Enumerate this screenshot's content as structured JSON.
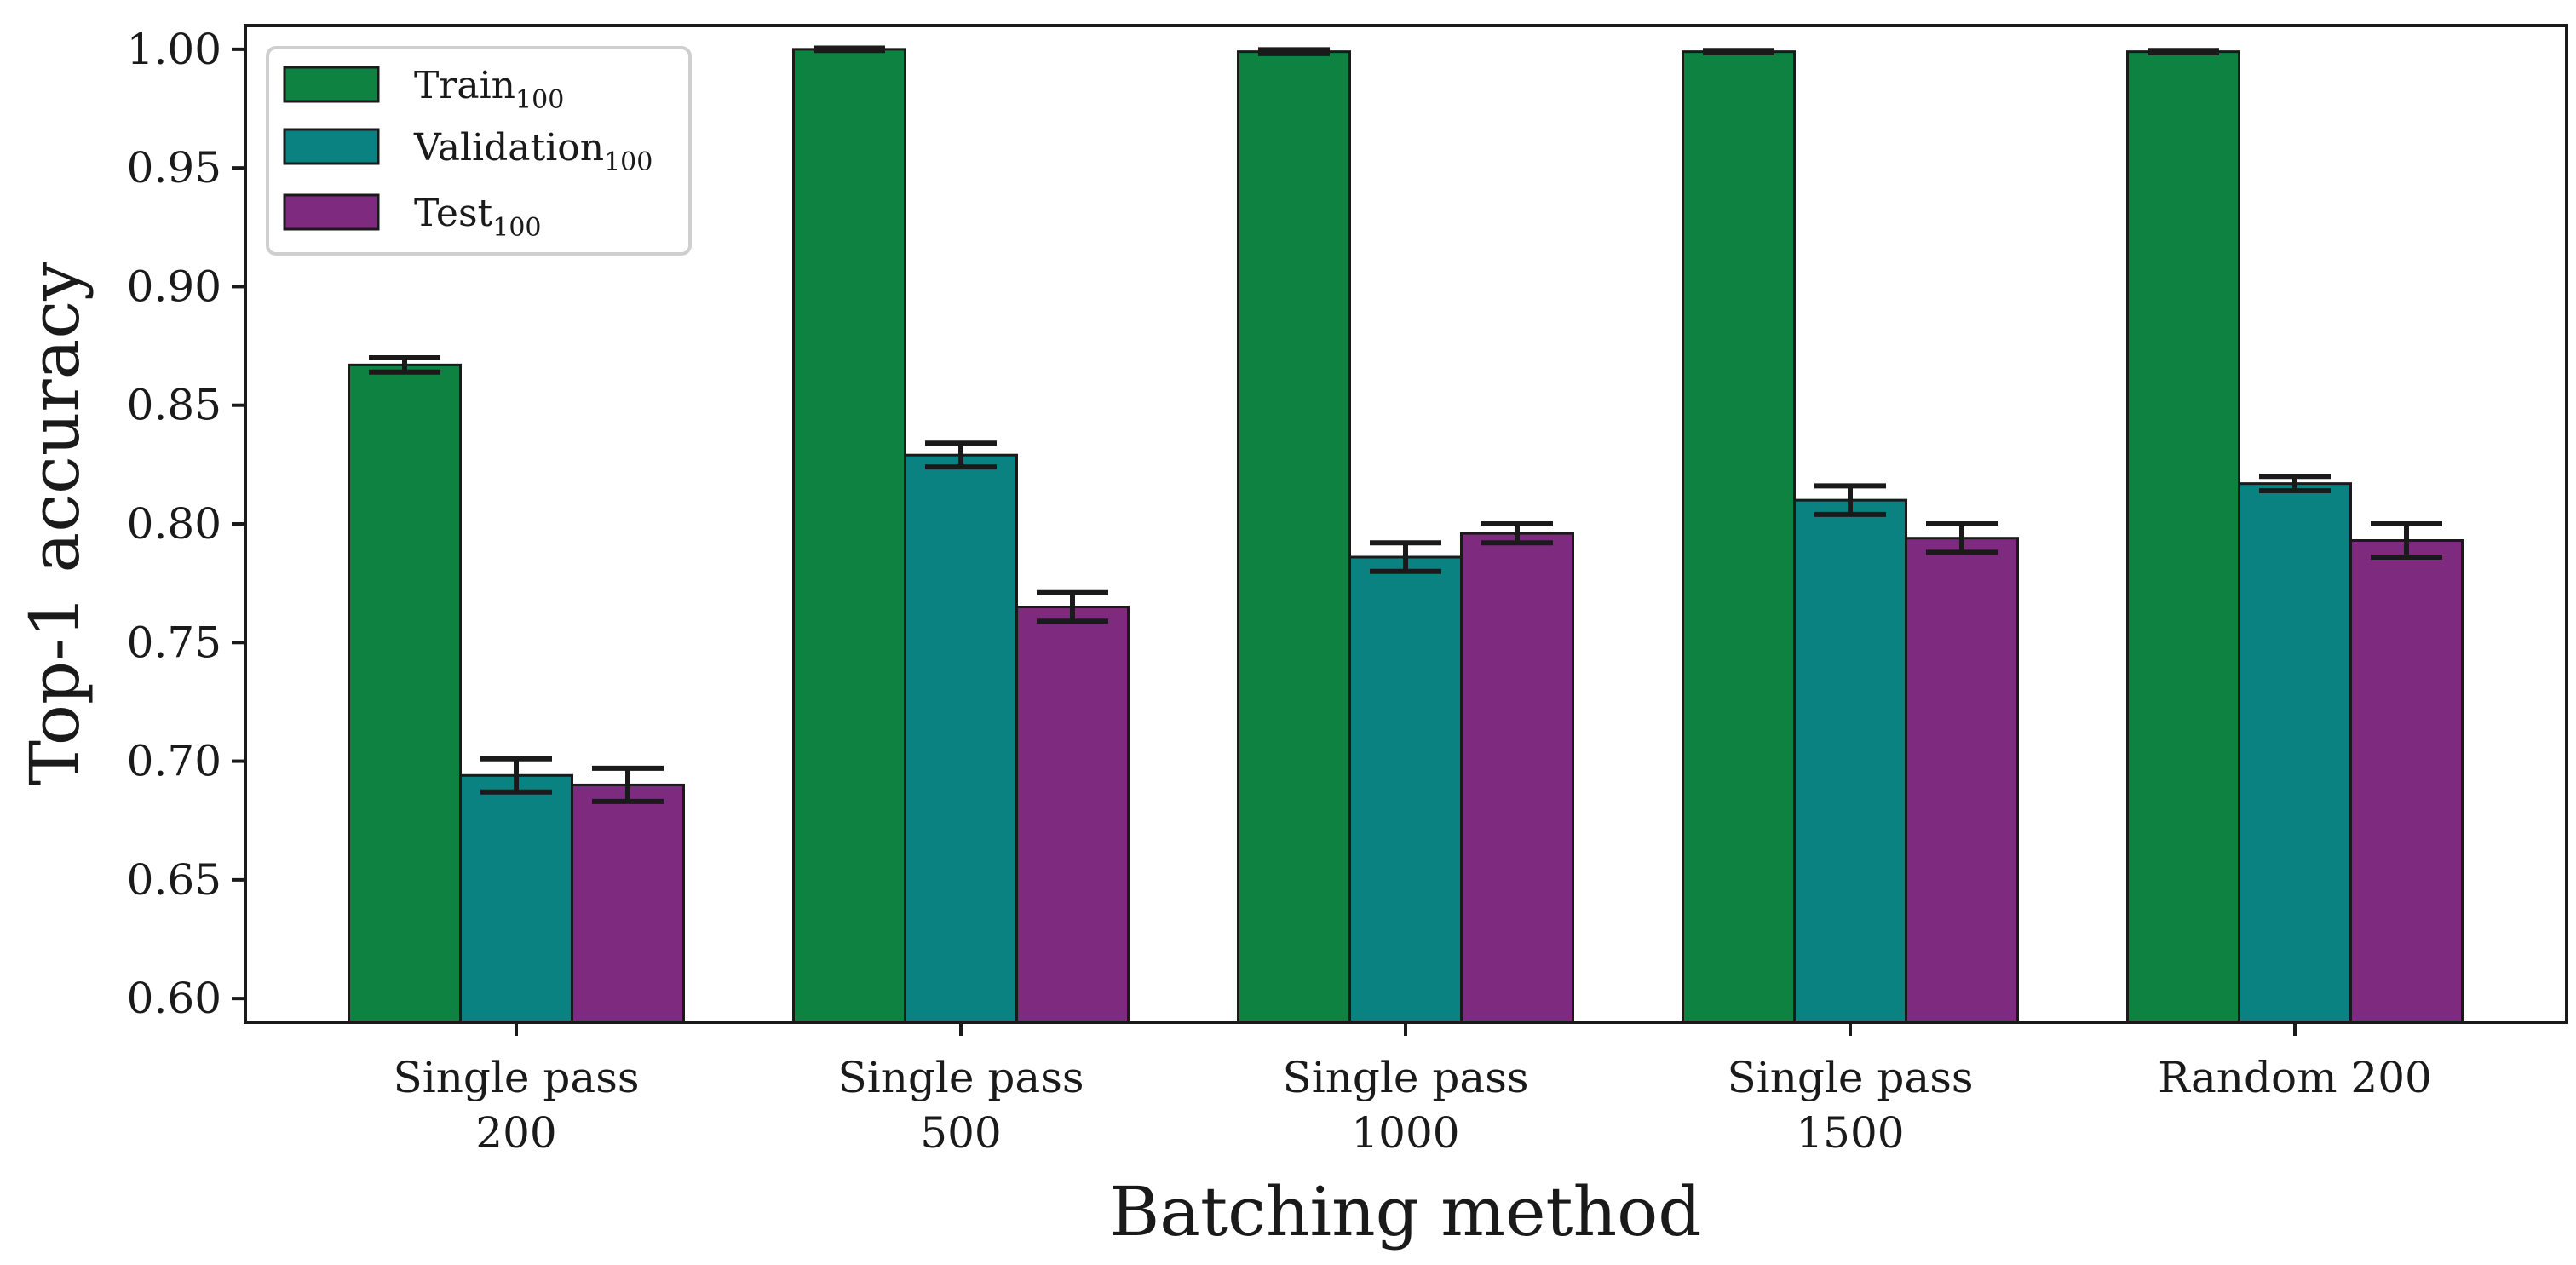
{
  "chart_data": {
    "type": "bar",
    "xlabel": "Batching method",
    "ylabel": "Top-1 accuracy",
    "ylim": [
      0.59,
      1.01
    ],
    "yticks": [
      "0.60",
      "0.65",
      "0.70",
      "0.75",
      "0.80",
      "0.85",
      "0.90",
      "0.95",
      "1.00"
    ],
    "ytick_values": [
      0.6,
      0.65,
      0.7,
      0.75,
      0.8,
      0.85,
      0.9,
      0.95,
      1.0
    ],
    "categories": [
      {
        "line1": "Single pass",
        "line2": "200"
      },
      {
        "line1": "Single pass",
        "line2": "500"
      },
      {
        "line1": "Single pass",
        "line2": "1000"
      },
      {
        "line1": "Single pass",
        "line2": "1500"
      },
      {
        "line1": "Random 200",
        "line2": ""
      }
    ],
    "legend_position": "top-left",
    "series": [
      {
        "name": "Train",
        "subscript": "100",
        "color": "#0d8241",
        "values": [
          0.867,
          1.0,
          0.999,
          0.999,
          0.999
        ],
        "errors": [
          0.003,
          0.0005,
          0.0008,
          0.0005,
          0.0005
        ]
      },
      {
        "name": "Validation",
        "subscript": "100",
        "color": "#0a8282",
        "values": [
          0.694,
          0.829,
          0.786,
          0.81,
          0.817
        ],
        "errors": [
          0.007,
          0.005,
          0.006,
          0.006,
          0.003
        ]
      },
      {
        "name": "Test",
        "subscript": "100",
        "color": "#7e2a7e",
        "values": [
          0.69,
          0.765,
          0.796,
          0.794,
          0.793
        ],
        "errors": [
          0.007,
          0.006,
          0.004,
          0.006,
          0.007
        ]
      }
    ]
  }
}
